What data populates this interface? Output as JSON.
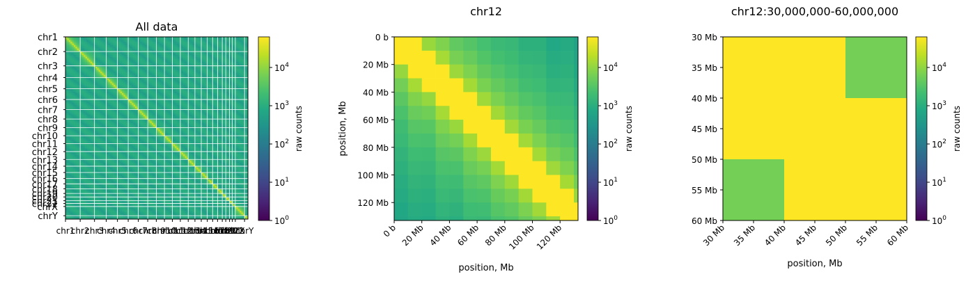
{
  "chart_data": [
    {
      "type": "heatmap",
      "title": "All data",
      "xlabel": "",
      "ylabel": "",
      "chromosomes": [
        "chr1",
        "chr2",
        "chr3",
        "chr4",
        "chr5",
        "chr6",
        "chr7",
        "chr8",
        "chr9",
        "chr10",
        "chr11",
        "chr12",
        "chr13",
        "chr14",
        "chr15",
        "chr16",
        "chr17",
        "chr18",
        "chr19",
        "chr20",
        "chr21",
        "chr22",
        "chrX",
        "chrY"
      ],
      "x_tick_labels": [
        "chr1",
        "chr2",
        "chr3",
        "chr4",
        "chr5",
        "chr6",
        "chr7",
        "chr8",
        "chr9",
        "chr10",
        "chr11",
        "chr12",
        "chr13",
        "chr14",
        "chr15",
        "chr16",
        "chr17",
        "chr18",
        "chr19",
        "chr20",
        "chr21",
        "chr22",
        "chrX",
        "chrY"
      ],
      "chromosome_sizes_mb": [
        249,
        242,
        198,
        190,
        182,
        171,
        159,
        145,
        138,
        134,
        135,
        133,
        114,
        107,
        102,
        90,
        83,
        80,
        59,
        64,
        47,
        51,
        156,
        57
      ],
      "color_scale": "log",
      "colorbar": {
        "label": "raw counts",
        "min": 1,
        "max": 50000,
        "ticks": [
          "10^0",
          "10^1",
          "10^2",
          "10^3",
          "10^4"
        ]
      },
      "values_description_diag": 20000,
      "values_description_offdiag": 600
    },
    {
      "type": "heatmap",
      "title": "chr12",
      "xlabel": "position, Mb",
      "ylabel": "position, Mb",
      "x_ticks": [
        "0 b",
        "20 Mb",
        "40 Mb",
        "60 Mb",
        "80 Mb",
        "100 Mb",
        "120 Mb"
      ],
      "y_ticks": [
        "0 b",
        "20 Mb",
        "40 Mb",
        "60 Mb",
        "80 Mb",
        "100 Mb",
        "120 Mb"
      ],
      "extent_mb": [
        0,
        133
      ],
      "bin_size_mb": 10,
      "color_scale": "log",
      "colorbar": {
        "label": "raw counts",
        "min": 1,
        "max": 50000,
        "ticks": [
          "10^0",
          "10^1",
          "10^2",
          "10^3",
          "10^4"
        ]
      }
    },
    {
      "type": "heatmap",
      "title": "chr12:30,000,000-60,000,000",
      "xlabel": "position, Mb",
      "ylabel": "",
      "x_ticks": [
        "30 Mb",
        "35 Mb",
        "40 Mb",
        "45 Mb",
        "50 Mb",
        "55 Mb",
        "60 Mb"
      ],
      "y_ticks": [
        "30 Mb",
        "35 Mb",
        "40 Mb",
        "45 Mb",
        "50 Mb",
        "55 Mb",
        "60 Mb"
      ],
      "extent_mb": [
        30,
        60
      ],
      "bins_mb": [
        30,
        40,
        50,
        60
      ],
      "matrix": [
        [
          50000,
          50000,
          5000
        ],
        [
          50000,
          50000,
          50000
        ],
        [
          5000,
          50000,
          50000
        ]
      ],
      "color_scale": "log",
      "colorbar": {
        "label": "raw counts",
        "min": 1,
        "max": 50000,
        "ticks": [
          "10^0",
          "10^1",
          "10^2",
          "10^3",
          "10^4"
        ]
      }
    }
  ]
}
